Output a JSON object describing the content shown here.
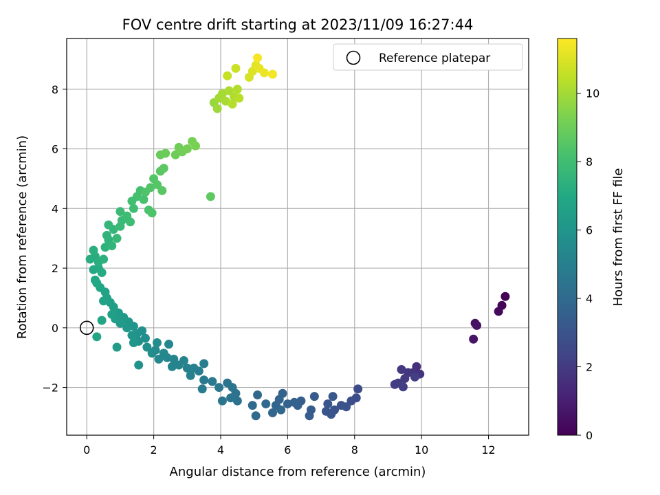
{
  "chart_data": {
    "type": "scatter",
    "title": "FOV centre drift starting at 2023/11/09 16:27:44",
    "xlabel": "Angular distance from reference (arcmin)",
    "ylabel": "Rotation from reference (arcmin)",
    "xlim": [
      -0.6,
      13.2
    ],
    "ylim": [
      -3.6,
      9.7
    ],
    "xticks": [
      0,
      2,
      4,
      6,
      8,
      10,
      12
    ],
    "yticks": [
      -2,
      0,
      2,
      4,
      6,
      8
    ],
    "xtick_labels": [
      "0",
      "2",
      "4",
      "6",
      "8",
      "10",
      "12"
    ],
    "ytick_labels": [
      "−2",
      "0",
      "2",
      "4",
      "6",
      "8"
    ],
    "grid": true,
    "legend": {
      "placement": "top-right",
      "entries": [
        "Reference platepar"
      ]
    },
    "reference_point": {
      "x": 0,
      "y": 0
    },
    "colorbar": {
      "label": "Hours from first FF file",
      "range": [
        0,
        11.6
      ],
      "ticks": [
        0,
        2,
        4,
        6,
        8,
        10
      ],
      "tick_labels": [
        "0",
        "2",
        "4",
        "6",
        "8",
        "10"
      ],
      "colormap": "viridis"
    },
    "points": [
      {
        "x": 12.5,
        "y": 1.05,
        "c": 0.05
      },
      {
        "x": 12.4,
        "y": 0.75,
        "c": 0.15
      },
      {
        "x": 12.3,
        "y": 0.55,
        "c": 0.25
      },
      {
        "x": 11.6,
        "y": 0.15,
        "c": 0.45
      },
      {
        "x": 11.65,
        "y": 0.08,
        "c": 0.55
      },
      {
        "x": 11.55,
        "y": -0.38,
        "c": 0.65
      },
      {
        "x": 9.85,
        "y": -1.3,
        "c": 1.6
      },
      {
        "x": 9.75,
        "y": -1.5,
        "c": 1.7
      },
      {
        "x": 9.95,
        "y": -1.55,
        "c": 1.75
      },
      {
        "x": 9.6,
        "y": -1.5,
        "c": 1.85
      },
      {
        "x": 9.4,
        "y": -1.4,
        "c": 1.9
      },
      {
        "x": 9.5,
        "y": -1.7,
        "c": 1.95
      },
      {
        "x": 9.3,
        "y": -1.85,
        "c": 2.0
      },
      {
        "x": 9.2,
        "y": -1.9,
        "c": 2.05
      },
      {
        "x": 9.45,
        "y": -1.98,
        "c": 2.1
      },
      {
        "x": 9.8,
        "y": -1.65,
        "c": 2.15
      },
      {
        "x": 8.1,
        "y": -2.05,
        "c": 2.6
      },
      {
        "x": 8.05,
        "y": -2.35,
        "c": 2.7
      },
      {
        "x": 7.9,
        "y": -2.45,
        "c": 2.8
      },
      {
        "x": 7.75,
        "y": -2.65,
        "c": 2.9
      },
      {
        "x": 7.6,
        "y": -2.6,
        "c": 2.95
      },
      {
        "x": 7.4,
        "y": -2.75,
        "c": 3.0
      },
      {
        "x": 7.3,
        "y": -2.9,
        "c": 3.05
      },
      {
        "x": 7.15,
        "y": -2.8,
        "c": 3.1
      },
      {
        "x": 7.2,
        "y": -2.55,
        "c": 3.15
      },
      {
        "x": 7.35,
        "y": -2.3,
        "c": 3.2
      },
      {
        "x": 6.8,
        "y": -2.3,
        "c": 3.3
      },
      {
        "x": 6.7,
        "y": -2.75,
        "c": 3.35
      },
      {
        "x": 6.65,
        "y": -2.95,
        "c": 3.4
      },
      {
        "x": 6.4,
        "y": -2.45,
        "c": 3.45
      },
      {
        "x": 6.3,
        "y": -2.6,
        "c": 3.5
      },
      {
        "x": 6.2,
        "y": -2.5,
        "c": 3.55
      },
      {
        "x": 6.0,
        "y": -2.55,
        "c": 3.6
      },
      {
        "x": 5.85,
        "y": -2.2,
        "c": 3.65
      },
      {
        "x": 5.75,
        "y": -2.4,
        "c": 3.7
      },
      {
        "x": 5.65,
        "y": -2.6,
        "c": 3.75
      },
      {
        "x": 5.55,
        "y": -2.85,
        "c": 3.8
      },
      {
        "x": 5.8,
        "y": -2.75,
        "c": 3.85
      },
      {
        "x": 5.35,
        "y": -2.55,
        "c": 3.9
      },
      {
        "x": 5.1,
        "y": -2.25,
        "c": 3.95
      },
      {
        "x": 5.05,
        "y": -2.95,
        "c": 4.0
      },
      {
        "x": 4.95,
        "y": -2.6,
        "c": 4.05
      },
      {
        "x": 4.5,
        "y": -2.45,
        "c": 4.3
      },
      {
        "x": 4.45,
        "y": -2.2,
        "c": 4.35
      },
      {
        "x": 4.35,
        "y": -2.0,
        "c": 4.4
      },
      {
        "x": 4.2,
        "y": -1.85,
        "c": 4.45
      },
      {
        "x": 4.3,
        "y": -2.35,
        "c": 4.5
      },
      {
        "x": 4.05,
        "y": -2.45,
        "c": 4.55
      },
      {
        "x": 3.95,
        "y": -2.0,
        "c": 4.6
      },
      {
        "x": 3.75,
        "y": -1.8,
        "c": 4.7
      },
      {
        "x": 3.5,
        "y": -1.75,
        "c": 4.75
      },
      {
        "x": 3.45,
        "y": -2.05,
        "c": 4.8
      },
      {
        "x": 3.5,
        "y": -1.2,
        "c": 4.85
      },
      {
        "x": 3.35,
        "y": -1.45,
        "c": 4.9
      },
      {
        "x": 3.2,
        "y": -1.35,
        "c": 4.95
      },
      {
        "x": 3.1,
        "y": -1.6,
        "c": 5.0
      },
      {
        "x": 3.0,
        "y": -1.35,
        "c": 5.05
      },
      {
        "x": 2.9,
        "y": -1.1,
        "c": 5.1
      },
      {
        "x": 2.75,
        "y": -1.25,
        "c": 5.15
      },
      {
        "x": 2.6,
        "y": -1.05,
        "c": 5.2
      },
      {
        "x": 2.55,
        "y": -1.3,
        "c": 5.25
      },
      {
        "x": 2.4,
        "y": -1.0,
        "c": 5.3
      },
      {
        "x": 2.45,
        "y": -0.55,
        "c": 5.35
      },
      {
        "x": 2.3,
        "y": -0.85,
        "c": 5.4
      },
      {
        "x": 2.15,
        "y": -1.05,
        "c": 5.45
      },
      {
        "x": 2.05,
        "y": -0.75,
        "c": 5.5
      },
      {
        "x": 2.1,
        "y": -0.5,
        "c": 5.55
      },
      {
        "x": 1.95,
        "y": -0.85,
        "c": 5.6
      },
      {
        "x": 1.8,
        "y": -0.65,
        "c": 5.65
      },
      {
        "x": 1.75,
        "y": -0.35,
        "c": 5.7
      },
      {
        "x": 1.65,
        "y": -0.1,
        "c": 5.75
      },
      {
        "x": 1.55,
        "y": -0.45,
        "c": 5.8
      },
      {
        "x": 1.5,
        "y": -0.2,
        "c": 5.85
      },
      {
        "x": 1.55,
        "y": -1.25,
        "c": 5.9
      },
      {
        "x": 1.4,
        "y": 0.05,
        "c": 5.95
      },
      {
        "x": 1.35,
        "y": -0.25,
        "c": 6.0
      },
      {
        "x": 1.4,
        "y": -0.5,
        "c": 6.05
      },
      {
        "x": 1.25,
        "y": 0.2,
        "c": 6.1
      },
      {
        "x": 1.2,
        "y": 0.0,
        "c": 6.15
      },
      {
        "x": 1.1,
        "y": 0.35,
        "c": 6.2
      },
      {
        "x": 1.0,
        "y": 0.15,
        "c": 6.25
      },
      {
        "x": 0.95,
        "y": 0.5,
        "c": 6.3
      },
      {
        "x": 0.9,
        "y": -0.65,
        "c": 6.35
      },
      {
        "x": 0.85,
        "y": 0.3,
        "c": 6.4
      },
      {
        "x": 0.8,
        "y": 0.7,
        "c": 6.45
      },
      {
        "x": 0.7,
        "y": 0.85,
        "c": 6.5
      },
      {
        "x": 0.75,
        "y": 0.45,
        "c": 6.55
      },
      {
        "x": 0.6,
        "y": 1.0,
        "c": 6.6
      },
      {
        "x": 0.55,
        "y": 1.2,
        "c": 6.65
      },
      {
        "x": 0.5,
        "y": 0.9,
        "c": 6.7
      },
      {
        "x": 0.45,
        "y": 0.25,
        "c": 6.75
      },
      {
        "x": 0.4,
        "y": 1.35,
        "c": 6.8
      },
      {
        "x": 0.3,
        "y": -0.3,
        "c": 6.85
      },
      {
        "x": 0.25,
        "y": 1.6,
        "c": 6.9
      },
      {
        "x": 0.3,
        "y": 1.5,
        "c": 6.95
      },
      {
        "x": 0.2,
        "y": 1.95,
        "c": 7.0
      },
      {
        "x": 0.35,
        "y": 2.0,
        "c": 7.05
      },
      {
        "x": 0.45,
        "y": 1.85,
        "c": 7.1
      },
      {
        "x": 0.1,
        "y": 2.3,
        "c": 7.15
      },
      {
        "x": 0.25,
        "y": 2.4,
        "c": 7.2
      },
      {
        "x": 0.35,
        "y": 2.2,
        "c": 7.25
      },
      {
        "x": 0.2,
        "y": 2.6,
        "c": 7.3
      },
      {
        "x": 0.5,
        "y": 2.3,
        "c": 7.35
      },
      {
        "x": 0.55,
        "y": 2.7,
        "c": 7.4
      },
      {
        "x": 0.65,
        "y": 2.95,
        "c": 7.45
      },
      {
        "x": 0.6,
        "y": 3.1,
        "c": 7.5
      },
      {
        "x": 0.75,
        "y": 2.75,
        "c": 7.55
      },
      {
        "x": 0.8,
        "y": 3.3,
        "c": 7.6
      },
      {
        "x": 0.65,
        "y": 3.45,
        "c": 7.65
      },
      {
        "x": 0.9,
        "y": 3.0,
        "c": 7.7
      },
      {
        "x": 1.0,
        "y": 3.4,
        "c": 7.75
      },
      {
        "x": 1.05,
        "y": 3.6,
        "c": 7.8
      },
      {
        "x": 1.0,
        "y": 3.9,
        "c": 7.85
      },
      {
        "x": 1.2,
        "y": 3.75,
        "c": 7.9
      },
      {
        "x": 1.3,
        "y": 3.55,
        "c": 7.95
      },
      {
        "x": 1.4,
        "y": 4.0,
        "c": 8.0
      },
      {
        "x": 1.35,
        "y": 4.25,
        "c": 8.05
      },
      {
        "x": 1.5,
        "y": 4.4,
        "c": 8.1
      },
      {
        "x": 1.6,
        "y": 4.6,
        "c": 8.15
      },
      {
        "x": 1.7,
        "y": 4.3,
        "c": 8.2
      },
      {
        "x": 1.85,
        "y": 3.95,
        "c": 8.25
      },
      {
        "x": 1.95,
        "y": 3.85,
        "c": 8.3
      },
      {
        "x": 1.75,
        "y": 4.55,
        "c": 8.35
      },
      {
        "x": 1.9,
        "y": 4.7,
        "c": 8.4
      },
      {
        "x": 2.0,
        "y": 5.0,
        "c": 8.45
      },
      {
        "x": 2.1,
        "y": 4.8,
        "c": 8.5
      },
      {
        "x": 2.25,
        "y": 4.6,
        "c": 8.55
      },
      {
        "x": 2.2,
        "y": 5.25,
        "c": 8.6
      },
      {
        "x": 2.3,
        "y": 5.35,
        "c": 8.65
      },
      {
        "x": 3.7,
        "y": 4.4,
        "c": 8.7
      },
      {
        "x": 2.2,
        "y": 5.8,
        "c": 8.9
      },
      {
        "x": 2.35,
        "y": 5.85,
        "c": 8.95
      },
      {
        "x": 2.65,
        "y": 5.8,
        "c": 9.0
      },
      {
        "x": 2.75,
        "y": 6.05,
        "c": 9.05
      },
      {
        "x": 2.85,
        "y": 5.9,
        "c": 9.1
      },
      {
        "x": 3.0,
        "y": 6.0,
        "c": 9.15
      },
      {
        "x": 3.15,
        "y": 6.25,
        "c": 9.2
      },
      {
        "x": 3.25,
        "y": 6.1,
        "c": 9.25
      },
      {
        "x": 3.8,
        "y": 7.55,
        "c": 9.8
      },
      {
        "x": 3.9,
        "y": 7.35,
        "c": 9.9
      },
      {
        "x": 3.95,
        "y": 7.7,
        "c": 10.0
      },
      {
        "x": 4.05,
        "y": 7.85,
        "c": 10.05
      },
      {
        "x": 4.15,
        "y": 7.6,
        "c": 10.1
      },
      {
        "x": 4.25,
        "y": 7.95,
        "c": 10.15
      },
      {
        "x": 4.4,
        "y": 7.75,
        "c": 10.2
      },
      {
        "x": 4.5,
        "y": 8.0,
        "c": 10.25
      },
      {
        "x": 4.35,
        "y": 7.5,
        "c": 10.3
      },
      {
        "x": 4.55,
        "y": 7.7,
        "c": 10.35
      },
      {
        "x": 4.2,
        "y": 8.45,
        "c": 10.6
      },
      {
        "x": 4.45,
        "y": 8.7,
        "c": 10.7
      },
      {
        "x": 4.85,
        "y": 8.4,
        "c": 10.9
      },
      {
        "x": 4.95,
        "y": 8.6,
        "c": 11.0
      },
      {
        "x": 5.05,
        "y": 8.8,
        "c": 11.1
      },
      {
        "x": 5.15,
        "y": 8.7,
        "c": 11.2
      },
      {
        "x": 5.3,
        "y": 8.55,
        "c": 11.3
      },
      {
        "x": 5.55,
        "y": 8.5,
        "c": 11.4
      },
      {
        "x": 5.1,
        "y": 9.05,
        "c": 11.5
      }
    ]
  }
}
